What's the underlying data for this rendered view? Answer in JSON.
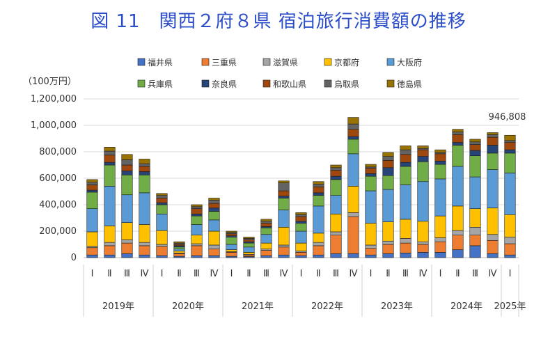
{
  "chart_data": {
    "type": "bar",
    "stacked": true,
    "title": "図 11　関西２府８県 宿泊旅行消費額の推移",
    "unit_label": "（100万円）",
    "ylim": [
      0,
      1200000
    ],
    "yticks": [
      "0",
      "200,000",
      "400,000",
      "600,000",
      "800,000",
      "1,000,000",
      "1,200,000"
    ],
    "grid": true,
    "legend_position": "top",
    "categories": [
      "Ⅰ",
      "Ⅱ",
      "Ⅲ",
      "Ⅳ",
      "Ⅰ",
      "Ⅱ",
      "Ⅲ",
      "Ⅳ",
      "Ⅰ",
      "Ⅱ",
      "Ⅲ",
      "Ⅳ",
      "Ⅰ",
      "Ⅱ",
      "Ⅲ",
      "Ⅳ",
      "Ⅰ",
      "Ⅱ",
      "Ⅲ",
      "Ⅳ",
      "Ⅰ",
      "Ⅱ",
      "Ⅲ",
      "Ⅳ",
      "Ⅰ"
    ],
    "year_groups": [
      {
        "label": "2019年",
        "count": 4
      },
      {
        "label": "2020年",
        "count": 4
      },
      {
        "label": "2021年",
        "count": 4
      },
      {
        "label": "2022年",
        "count": 4
      },
      {
        "label": "2023年",
        "count": 4
      },
      {
        "label": "2024年",
        "count": 4
      },
      {
        "label": "2025年",
        "count": 1
      }
    ],
    "annotation": {
      "text": "946,808",
      "index": 24
    },
    "series": [
      {
        "name": "福井県",
        "color": "#4472c4",
        "values": [
          20000,
          20000,
          30000,
          20000,
          15000,
          10000,
          15000,
          15000,
          10000,
          8000,
          15000,
          20000,
          15000,
          20000,
          30000,
          30000,
          20000,
          30000,
          35000,
          40000,
          40000,
          60000,
          90000,
          30000,
          20000
        ]
      },
      {
        "name": "三重県",
        "color": "#ed7d31",
        "values": [
          55000,
          70000,
          80000,
          70000,
          70000,
          20000,
          75000,
          50000,
          30000,
          12000,
          40000,
          60000,
          25000,
          70000,
          140000,
          280000,
          50000,
          70000,
          75000,
          60000,
          80000,
          110000,
          80000,
          100000,
          85000
        ]
      },
      {
        "name": "滋賀県",
        "color": "#a5a5a5",
        "values": [
          10000,
          25000,
          25000,
          25000,
          15000,
          5000,
          15000,
          30000,
          5000,
          5000,
          10000,
          15000,
          10000,
          25000,
          25000,
          30000,
          25000,
          25000,
          35000,
          20000,
          30000,
          35000,
          60000,
          45000,
          50000
        ]
      },
      {
        "name": "京都府",
        "color": "#ffc000",
        "values": [
          110000,
          125000,
          130000,
          135000,
          105000,
          15000,
          65000,
          105000,
          15000,
          15000,
          45000,
          135000,
          60000,
          70000,
          135000,
          200000,
          165000,
          145000,
          145000,
          155000,
          165000,
          185000,
          140000,
          200000,
          170000
        ]
      },
      {
        "name": "大阪府",
        "color": "#5b9bd5",
        "values": [
          175000,
          300000,
          210000,
          240000,
          125000,
          15000,
          80000,
          85000,
          40000,
          40000,
          65000,
          130000,
          90000,
          205000,
          140000,
          245000,
          245000,
          245000,
          260000,
          300000,
          280000,
          300000,
          240000,
          290000,
          315000
        ]
      },
      {
        "name": "兵庫県",
        "color": "#70ad47",
        "values": [
          125000,
          160000,
          150000,
          135000,
          70000,
          15000,
          65000,
          65000,
          55000,
          30000,
          50000,
          90000,
          60000,
          80000,
          120000,
          110000,
          110000,
          105000,
          140000,
          150000,
          110000,
          160000,
          160000,
          125000,
          150000
        ]
      },
      {
        "name": "奈良県",
        "color": "#264478",
        "values": [
          15000,
          20000,
          30000,
          25000,
          15000,
          10000,
          15000,
          25000,
          10000,
          10000,
          10000,
          15000,
          15000,
          20000,
          25000,
          20000,
          20000,
          60000,
          30000,
          40000,
          25000,
          20000,
          40000,
          60000,
          25000
        ]
      },
      {
        "name": "和歌山県",
        "color": "#9e480e",
        "values": [
          40000,
          55000,
          45000,
          40000,
          35000,
          10000,
          40000,
          35000,
          15000,
          15000,
          25000,
          40000,
          35000,
          45000,
          45000,
          55000,
          40000,
          55000,
          60000,
          50000,
          55000,
          60000,
          45000,
          60000,
          55000
        ]
      },
      {
        "name": "鳥取県",
        "color": "#636363",
        "values": [
          20000,
          30000,
          40000,
          20000,
          20000,
          10000,
          15000,
          25000,
          10000,
          10000,
          15000,
          60000,
          15000,
          20000,
          20000,
          40000,
          10000,
          30000,
          35000,
          10000,
          10000,
          20000,
          20000,
          20000,
          15000
        ]
      },
      {
        "name": "徳島県",
        "color": "#997300",
        "values": [
          20000,
          30000,
          40000,
          35000,
          15000,
          10000,
          15000,
          15000,
          10000,
          10000,
          15000,
          15000,
          15000,
          20000,
          20000,
          50000,
          20000,
          30000,
          30000,
          20000,
          20000,
          20000,
          20000,
          15000,
          40000
        ]
      }
    ]
  }
}
